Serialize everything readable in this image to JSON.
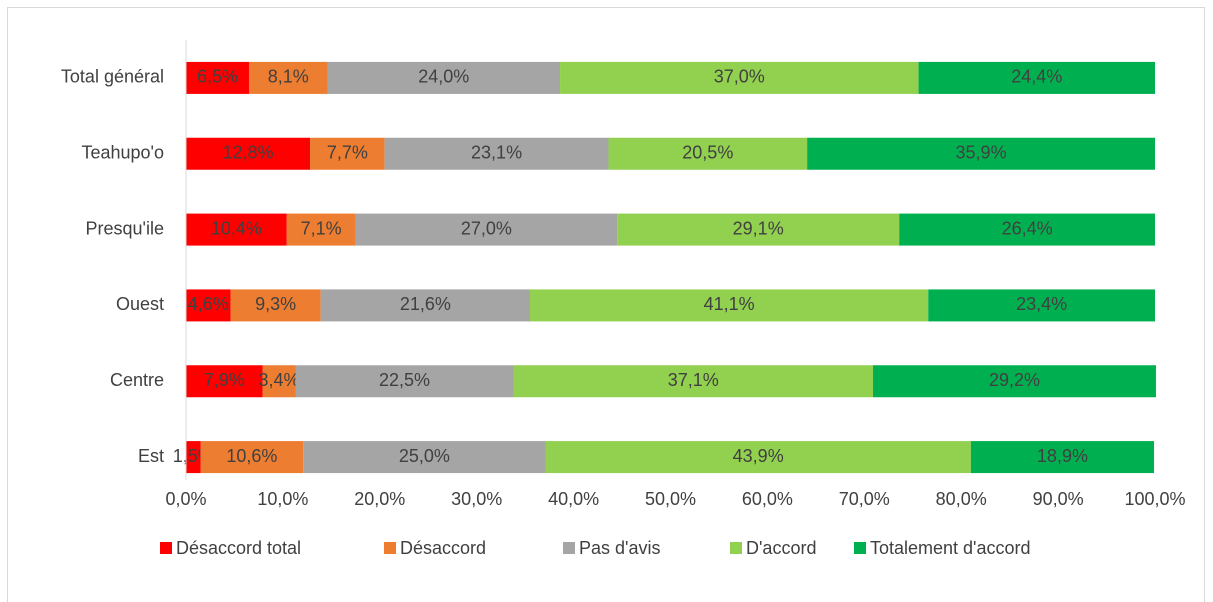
{
  "chart_data": {
    "type": "stacked-bar-horizontal",
    "categories": [
      "Total général",
      "Teahupo'o",
      "Presqu'ile",
      "Ouest",
      "Centre",
      "Est"
    ],
    "series": [
      {
        "name": "Désaccord total",
        "color": "#ff0000",
        "values": [
          6.5,
          12.8,
          10.4,
          4.6,
          7.9,
          1.5
        ],
        "value_labels": [
          "6,5%",
          "12,8%",
          "10,4%",
          "4,6%",
          "7,9%",
          "1,5%"
        ]
      },
      {
        "name": "Désaccord",
        "color": "#ed7d31",
        "values": [
          8.1,
          7.7,
          7.1,
          9.3,
          3.4,
          10.6
        ],
        "value_labels": [
          "8,1%",
          "7,7%",
          "7,1%",
          "9,3%",
          "3,4%",
          "10,6%"
        ]
      },
      {
        "name": "Pas d'avis",
        "color": "#a5a5a5",
        "values": [
          24.0,
          23.1,
          27.0,
          21.6,
          22.5,
          25.0
        ],
        "value_labels": [
          "24,0%",
          "23,1%",
          "27,0%",
          "21,6%",
          "22,5%",
          "25,0%"
        ]
      },
      {
        "name": "D'accord",
        "color": "#92d050",
        "values": [
          37.0,
          20.5,
          29.1,
          41.1,
          37.1,
          43.9
        ],
        "value_labels": [
          "37,0%",
          "20,5%",
          "29,1%",
          "41,1%",
          "37,1%",
          "43,9%"
        ]
      },
      {
        "name": "Totalement d'accord",
        "color": "#00b050",
        "values": [
          24.4,
          35.9,
          26.4,
          23.4,
          29.2,
          18.9
        ],
        "value_labels": [
          "24,4%",
          "35,9%",
          "26,4%",
          "23,4%",
          "29,2%",
          "18,9%"
        ]
      }
    ],
    "xlim": [
      0,
      100
    ],
    "xticks": [
      {
        "value": 0,
        "label": "0,0%"
      },
      {
        "value": 10,
        "label": "10,0%"
      },
      {
        "value": 20,
        "label": "20,0%"
      },
      {
        "value": 30,
        "label": "30,0%"
      },
      {
        "value": 40,
        "label": "40,0%"
      },
      {
        "value": 50,
        "label": "50,0%"
      },
      {
        "value": 60,
        "label": "60,0%"
      },
      {
        "value": 70,
        "label": "70,0%"
      },
      {
        "value": 80,
        "label": "80,0%"
      },
      {
        "value": 90,
        "label": "90,0%"
      },
      {
        "value": 100,
        "label": "100,0%"
      }
    ],
    "grid": false,
    "legend": "bottom"
  }
}
